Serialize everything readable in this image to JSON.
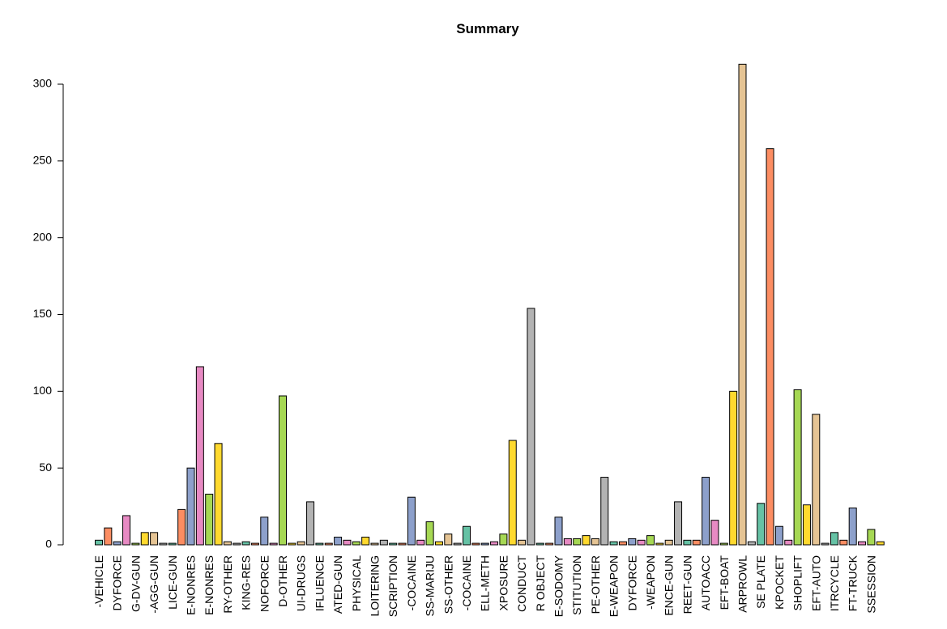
{
  "chart_data": {
    "type": "bar",
    "title": "Summary",
    "categories": [
      "-VEHICLE",
      null,
      "DYFORCE",
      null,
      "G-DV-GUN",
      null,
      "-AGG-GUN",
      null,
      "LICE-GUN",
      null,
      "E-NONRES",
      null,
      "E-NONRES",
      null,
      "RY-OTHER",
      null,
      "KING-RES",
      null,
      "NOFORCE",
      null,
      "D-OTHER",
      null,
      "UI-DRUGS",
      null,
      "IFLUENCE",
      null,
      "ATED-GUN",
      null,
      "PHYSICAL",
      null,
      "LOITERING",
      null,
      "SCRIPTION",
      null,
      "-COCAINE",
      null,
      "SS-MARIJU",
      null,
      "SS-OTHER",
      null,
      "-COCAINE",
      null,
      "ELL-METH",
      null,
      "XPOSURE",
      null,
      "CONDUCT",
      null,
      "R OBJECT",
      null,
      "E-SODOMY",
      null,
      "STITUTION",
      null,
      "PE-OTHER",
      null,
      "E-WEAPON",
      null,
      "DYFORCE",
      null,
      "-WEAPON",
      null,
      "ENCE-GUN",
      null,
      "REET-GUN",
      null,
      "AUTOACC",
      null,
      "EFT-BOAT",
      null,
      "ARPROWL",
      null,
      "SE PLATE",
      null,
      "KPOCKET",
      null,
      "SHOPLIFT",
      null,
      "EFT-AUTO",
      null,
      "ITRCYCLE",
      null,
      "FT-TRUCK",
      null,
      "SSESSION",
      null
    ],
    "values": [
      3,
      11,
      2,
      19,
      1,
      8,
      8,
      1,
      1,
      23,
      50,
      116,
      33,
      66,
      2,
      1,
      2,
      1,
      18,
      1,
      97,
      1,
      2,
      28,
      1,
      1,
      5,
      3,
      2,
      5,
      1,
      3,
      1,
      1,
      31,
      3,
      15,
      2,
      7,
      1,
      12,
      1,
      1,
      2,
      7,
      68,
      3,
      154,
      1,
      1,
      18,
      4,
      4,
      6,
      4,
      44,
      2,
      2,
      4,
      3,
      6,
      1,
      3,
      28,
      3,
      3,
      44,
      16,
      1,
      100,
      313,
      2,
      27,
      258,
      12,
      3,
      101,
      26,
      85,
      1,
      8,
      3,
      24,
      2,
      10,
      2
    ],
    "colors": [
      "#66C2A5",
      "#FC8D62",
      "#8DA0CB",
      "#E78AC3",
      "#A6D854",
      "#FFD92F",
      "#E5C494",
      "#B3B3B3"
    ],
    "ylim": [
      0,
      300
    ],
    "yticks": [
      0,
      50,
      100,
      150,
      200,
      250,
      300
    ]
  }
}
